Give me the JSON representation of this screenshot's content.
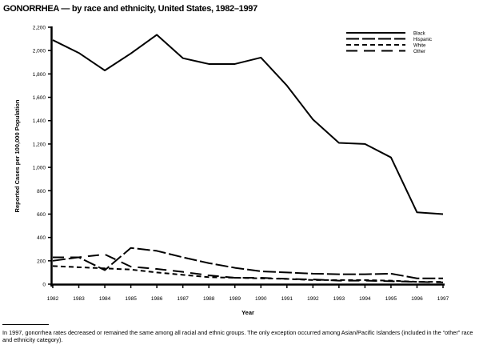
{
  "chart_data": {
    "type": "line",
    "title": "GONORRHEA — by race and ethnicity, United States, 1982–1997",
    "xlabel": "Year",
    "ylabel": "Reported Cases per 100,000 Population",
    "ylim": [
      0,
      2200
    ],
    "yticks": [
      "0",
      "200",
      "400",
      "600",
      "800",
      "1,000",
      "1,200",
      "1,400",
      "1,600",
      "1,800",
      "2,000",
      "2,200"
    ],
    "x": [
      "1982",
      "1983",
      "1984",
      "1985",
      "1986",
      "1987",
      "1988",
      "1989",
      "1990",
      "1991",
      "1992",
      "1993",
      "1994",
      "1995",
      "1996",
      "1997"
    ],
    "grid": false,
    "legend_position": "top-right",
    "series": [
      {
        "name": "Black",
        "style": "solid",
        "values": [
          2090,
          1980,
          1830,
          1975,
          2135,
          1935,
          1885,
          1885,
          1940,
          1700,
          1410,
          1210,
          1200,
          1085,
          615,
          600
        ]
      },
      {
        "name": "Hispanic",
        "style": "long-dash",
        "values": [
          200,
          230,
          120,
          310,
          285,
          230,
          180,
          140,
          110,
          100,
          90,
          85,
          85,
          90,
          50,
          50
        ]
      },
      {
        "name": "White",
        "style": "short-dash",
        "values": [
          155,
          145,
          135,
          125,
          100,
          80,
          60,
          55,
          50,
          45,
          35,
          35,
          35,
          30,
          20,
          20
        ]
      },
      {
        "name": "Other",
        "style": "long-dash-gap",
        "values": [
          230,
          230,
          255,
          150,
          130,
          105,
          75,
          55,
          55,
          45,
          40,
          30,
          30,
          25,
          20,
          15
        ]
      }
    ]
  },
  "footnote": "In 1997, gonorrhea rates decreased or remained the same among all racial and ethnic groups. The only exception occurred among Asian/Pacific Islanders (included in the “other” race and ethnicity category)."
}
